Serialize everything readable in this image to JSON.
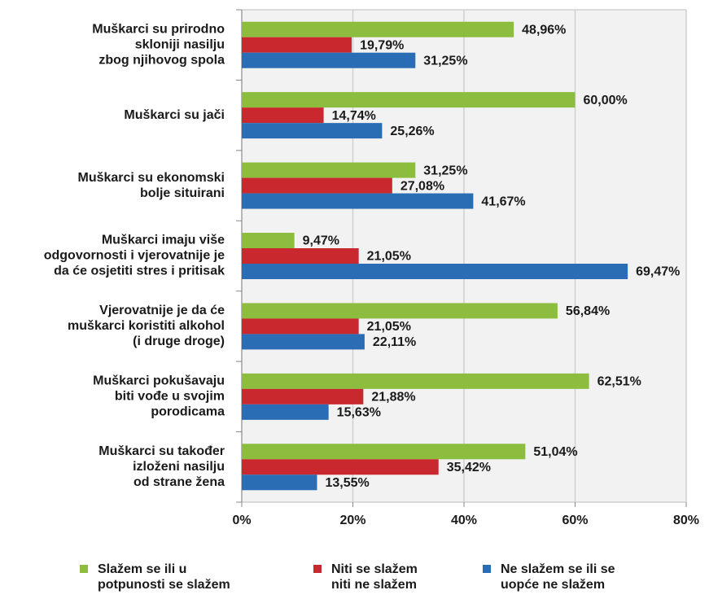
{
  "chart_data": {
    "type": "hbar",
    "categories": [
      [
        "Muškarci su prirodno",
        "skloniji nasilju",
        "zbog njihovog spola"
      ],
      [
        "Muškarci su jači"
      ],
      [
        "Muškarci su ekonomski",
        "bolje situirani"
      ],
      [
        "Muškarci imaju više",
        "odgovornosti i vjerovatnije je",
        "da će osjetiti stres i pritisak"
      ],
      [
        "Vjerovatnije je da će",
        "muškarci koristiti alkohol",
        "(i druge droge)"
      ],
      [
        "Muškarci pokušavaju",
        "biti vođe u svojim",
        "porodicama"
      ],
      [
        "Muškarci su također",
        "izloženi nasilju",
        "od strane žena"
      ]
    ],
    "series": [
      {
        "name": [
          "Slažem se ili u",
          "potpunosti se slažem"
        ],
        "color": "#8cbd3f",
        "values": [
          48.96,
          60.0,
          31.25,
          9.47,
          56.84,
          62.51,
          51.04
        ],
        "value_labels": [
          "48,96%",
          "60,00%",
          "31,25%",
          "9,47%",
          "56,84%",
          "62,51%",
          "51,04%"
        ]
      },
      {
        "name": [
          "Niti se slažem",
          "niti ne slažem"
        ],
        "color": "#c8282e",
        "values": [
          19.79,
          14.74,
          27.08,
          21.05,
          21.05,
          21.88,
          35.42
        ],
        "value_labels": [
          "19,79%",
          "14,74%",
          "27,08%",
          "21,05%",
          "21,05%",
          "21,88%",
          "35,42%"
        ]
      },
      {
        "name": [
          "Ne slažem se ili se",
          "uopće ne slažem"
        ],
        "color": "#2a6db5",
        "values": [
          31.25,
          25.26,
          41.67,
          69.47,
          22.11,
          15.63,
          13.55
        ],
        "value_labels": [
          "31,25%",
          "25,26%",
          "41,67%",
          "69,47%",
          "22,11%",
          "15,63%",
          "13,55%"
        ]
      }
    ],
    "xlim": [
      0,
      80
    ],
    "xticks": [
      {
        "value": 0,
        "label": "0%"
      },
      {
        "value": 20,
        "label": "20%"
      },
      {
        "value": 40,
        "label": "40%"
      },
      {
        "value": 60,
        "label": "60%"
      },
      {
        "value": 80,
        "label": "80%"
      }
    ],
    "grid": true,
    "legend": "bottom"
  }
}
